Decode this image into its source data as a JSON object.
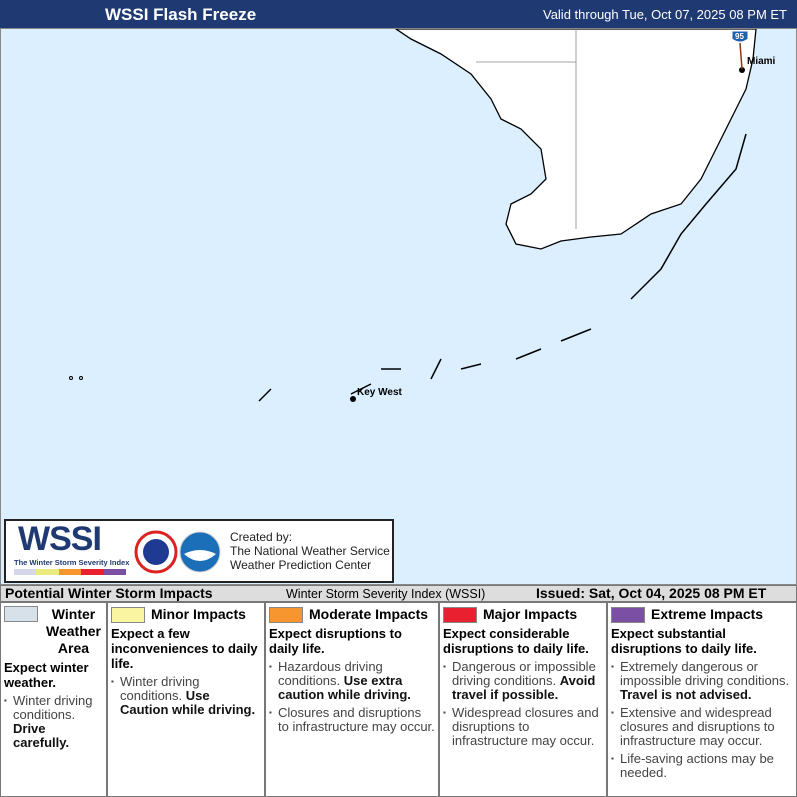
{
  "header": {
    "title": "WSSI Flash Freeze",
    "valid": "Valid through Tue, Oct 07, 2025 08 PM ET"
  },
  "map": {
    "labels": {
      "miami": "Miami",
      "key_west": "Key West",
      "interstate": "95"
    },
    "ocean_color": "#dcefff"
  },
  "logo": {
    "wssi": "WSSI",
    "subtitle": "The Winter Storm Severity Index",
    "created_by": "Created by:",
    "org1": "The National Weather Service",
    "org2": "Weather Prediction Center"
  },
  "strip": {
    "title": "Potential Winter Storm Impacts",
    "index": "Winter Storm Severity Index (WSSI)",
    "issued": "Issued: Sat, Oct 04, 2025 08 PM ET"
  },
  "legend": [
    {
      "name": "Winter Weather Area",
      "color": "#d6e1ea",
      "expect": "Expect winter weather.",
      "bullets": [
        {
          "text": "Winter driving conditions.",
          "bold": "Drive carefully."
        }
      ]
    },
    {
      "name": "Minor Impacts",
      "color": "#faf5a0",
      "expect": "Expect a few inconveniences to daily life.",
      "bullets": [
        {
          "text": "Winter driving conditions.",
          "bold": "Use Caution while driving."
        }
      ]
    },
    {
      "name": "Moderate Impacts",
      "color": "#f7962f",
      "expect": "Expect disruptions to daily life.",
      "bullets": [
        {
          "text": "Hazardous driving conditions.",
          "bold": "Use extra caution while driving."
        },
        {
          "text": "Closures and disruptions to infrastructure may occur.",
          "bold": ""
        }
      ]
    },
    {
      "name": "Major Impacts",
      "color": "#e8202f",
      "expect": "Expect considerable disruptions to daily life.",
      "bullets": [
        {
          "text": "Dangerous or impossible driving conditions.",
          "bold": "Avoid travel if possible."
        },
        {
          "text": "Widespread closures and disruptions to infrastructure may occur.",
          "bold": ""
        }
      ]
    },
    {
      "name": "Extreme Impacts",
      "color": "#7b4fa3",
      "expect": "Expect substantial disruptions to daily life.",
      "bullets": [
        {
          "text": "Extremely dangerous or impossible driving conditions.",
          "bold": "Travel is not advised."
        },
        {
          "text": "Extensive and widespread closures and disruptions to infrastructure may occur.",
          "bold": ""
        },
        {
          "text": "Life-saving actions may be needed.",
          "bold": ""
        }
      ]
    }
  ]
}
